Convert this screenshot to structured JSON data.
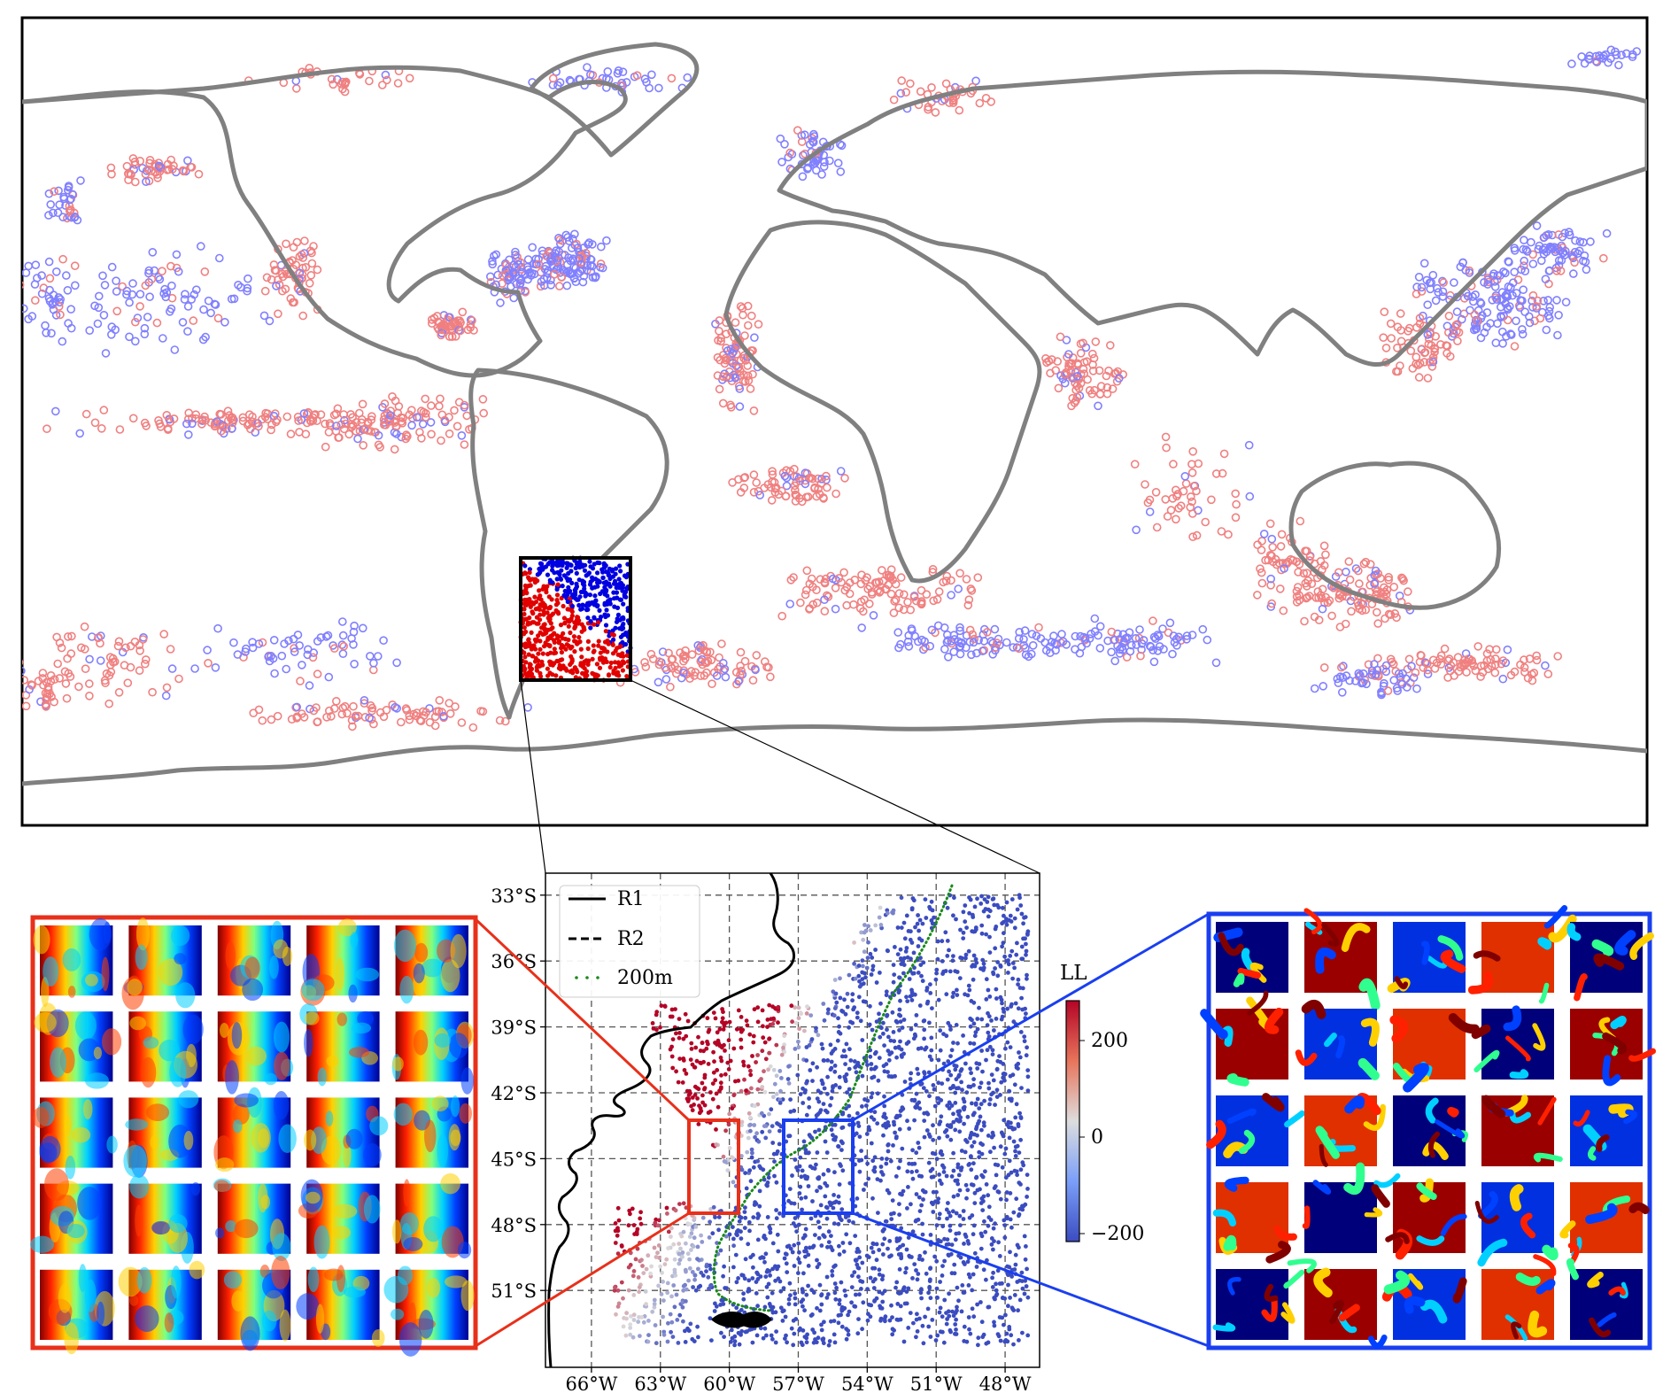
{
  "figure": {
    "colors": {
      "positive_marker": "#f08080",
      "negative_marker": "#8080ff",
      "coastline": "#808080",
      "inset_coast": "#000000",
      "isobath": "#1a8a1a",
      "red_box": "#e8301a",
      "blue_box": "#1a3ff0",
      "zoom_box": "#000000"
    },
    "world_map": {
      "projection": "plate-carree",
      "extent_lon": [
        -180,
        180
      ],
      "extent_lat": [
        -78,
        88
      ],
      "symbol": "open-circle",
      "legend": null
    },
    "inset_map": {
      "extent_lon": [
        -68,
        -46.5
      ],
      "extent_lat": [
        -54.5,
        -32
      ],
      "lat_ticks": [
        "33°S",
        "36°S",
        "39°S",
        "42°S",
        "45°S",
        "48°S",
        "51°S"
      ],
      "lon_ticks": [
        "66°W",
        "63°W",
        "60°W",
        "57°W",
        "54°W",
        "51°W",
        "48°W"
      ],
      "grid": "dashed",
      "legend": {
        "items": [
          {
            "label": "R1",
            "style": "solid-line"
          },
          {
            "label": "R2",
            "style": "dashed-line"
          },
          {
            "label": "200m",
            "style": "green-dots"
          }
        ]
      },
      "colorbar": {
        "label": "LL",
        "ticks": [
          "200",
          "0",
          "−200"
        ],
        "cmap": "coolwarm",
        "range": [
          -260,
          260
        ]
      },
      "boxes": {
        "R1": {
          "lon": [
            -61.5,
            -59.3
          ],
          "lat": [
            -47.2,
            -43.8
          ],
          "color": "red"
        },
        "R2": {
          "lon": [
            -57.2,
            -54.2
          ],
          "lat": [
            -47.2,
            -43.6
          ],
          "color": "blue"
        }
      }
    },
    "cutout_panels": {
      "left": {
        "grid": [
          5,
          5
        ],
        "colormap": "jet",
        "pattern": "front"
      },
      "right": {
        "grid": [
          5,
          5
        ],
        "colormap": "jet",
        "pattern": "eddies"
      }
    }
  }
}
